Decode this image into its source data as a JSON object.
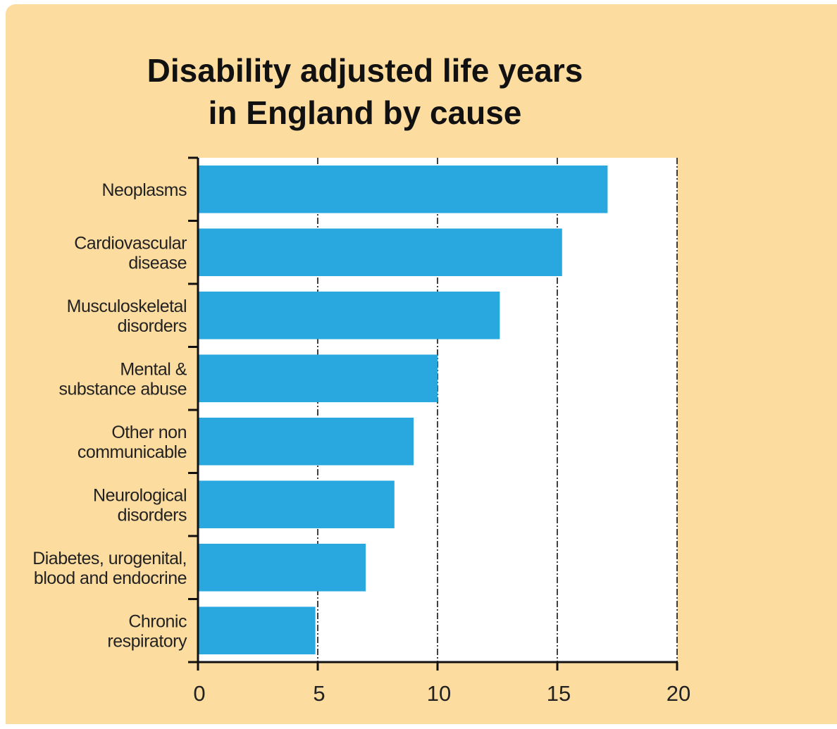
{
  "chart_data": {
    "type": "bar",
    "orientation": "horizontal",
    "title_lines": [
      "Disability adjusted life years",
      "in England by cause"
    ],
    "categories": [
      [
        "Neoplasms"
      ],
      [
        "Cardiovascular",
        "disease"
      ],
      [
        "Musculoskeletal",
        "disorders"
      ],
      [
        "Mental &",
        "substance abuse"
      ],
      [
        "Other non",
        "communicable"
      ],
      [
        "Neurological",
        "disorders"
      ],
      [
        "Diabetes, urogenital,",
        "blood and endocrine"
      ],
      [
        "Chronic",
        "respiratory"
      ]
    ],
    "values": [
      17.1,
      15.2,
      12.6,
      10.0,
      9.0,
      8.2,
      7.0,
      4.9
    ],
    "xlim": [
      0,
      20
    ],
    "xticks": [
      "0",
      "5",
      "10",
      "15",
      "20"
    ],
    "grid": "vertical dashed",
    "colors": {
      "bar": "#29a8e0",
      "panel": "#fddca0",
      "plot_bg": "#ffffff",
      "axis": "#111111"
    }
  }
}
